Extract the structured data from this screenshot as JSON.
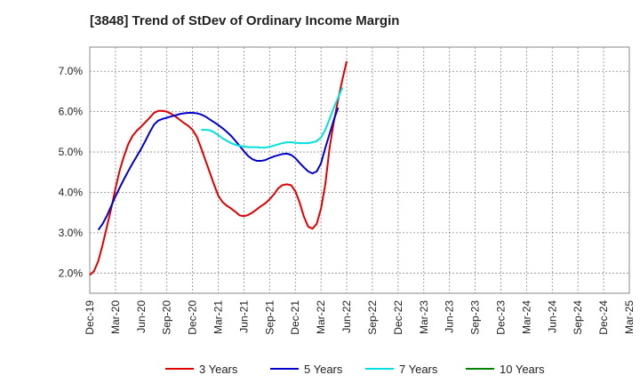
{
  "chart_data": {
    "type": "line",
    "title": "[3848]  Trend of StDev of Ordinary Income Margin",
    "xlabel": "",
    "ylabel": "",
    "x_tick_labels": [
      "Dec-19",
      "Mar-20",
      "Jun-20",
      "Sep-20",
      "Dec-20",
      "Mar-21",
      "Jun-21",
      "Sep-21",
      "Dec-21",
      "Mar-22",
      "Jun-22",
      "Sep-22",
      "Dec-22",
      "Mar-23",
      "Jun-23",
      "Sep-23",
      "Dec-23",
      "Mar-24",
      "Jun-24",
      "Sep-24",
      "Dec-24",
      "Mar-25"
    ],
    "y_tick_labels": [
      "2.0%",
      "3.0%",
      "4.0%",
      "5.0%",
      "6.0%",
      "7.0%"
    ],
    "y_ticks": [
      2.0,
      3.0,
      4.0,
      5.0,
      6.0,
      7.0
    ],
    "ylim": [
      1.5,
      7.6
    ],
    "grid": true,
    "legend_position": "bottom",
    "series": [
      {
        "name": "3 Years",
        "color": "#e00000",
        "points": [
          [
            0,
            1.95
          ],
          [
            0.5,
            2.05
          ],
          [
            1,
            2.3
          ],
          [
            1.5,
            2.7
          ],
          [
            2,
            3.15
          ],
          [
            2.5,
            3.6
          ],
          [
            3,
            4.1
          ],
          [
            3.5,
            4.55
          ],
          [
            4,
            4.9
          ],
          [
            4.5,
            5.2
          ],
          [
            5,
            5.4
          ],
          [
            5.5,
            5.53
          ],
          [
            6,
            5.63
          ],
          [
            6.5,
            5.74
          ],
          [
            7,
            5.85
          ],
          [
            7.5,
            5.97
          ],
          [
            8,
            6.02
          ],
          [
            8.5,
            6.02
          ],
          [
            9,
            6.0
          ],
          [
            9.5,
            5.95
          ],
          [
            10,
            5.88
          ],
          [
            10.5,
            5.8
          ],
          [
            11,
            5.72
          ],
          [
            11.5,
            5.65
          ],
          [
            12,
            5.55
          ],
          [
            12.5,
            5.38
          ],
          [
            13,
            5.1
          ],
          [
            13.5,
            4.8
          ],
          [
            14,
            4.5
          ],
          [
            14.5,
            4.2
          ],
          [
            15,
            3.92
          ],
          [
            15.5,
            3.76
          ],
          [
            16,
            3.67
          ],
          [
            16.5,
            3.6
          ],
          [
            17,
            3.52
          ],
          [
            17.5,
            3.43
          ],
          [
            18,
            3.41
          ],
          [
            18.5,
            3.44
          ],
          [
            19,
            3.5
          ],
          [
            19.5,
            3.58
          ],
          [
            20,
            3.66
          ],
          [
            20.5,
            3.73
          ],
          [
            21,
            3.83
          ],
          [
            21.5,
            3.95
          ],
          [
            22,
            4.1
          ],
          [
            22.5,
            4.18
          ],
          [
            23,
            4.2
          ],
          [
            23.5,
            4.18
          ],
          [
            24,
            4.03
          ],
          [
            24.5,
            3.75
          ],
          [
            25,
            3.4
          ],
          [
            25.5,
            3.15
          ],
          [
            26,
            3.1
          ],
          [
            26.5,
            3.22
          ],
          [
            27,
            3.6
          ],
          [
            27.5,
            4.2
          ],
          [
            28,
            5.1
          ],
          [
            28.5,
            5.75
          ],
          [
            29,
            6.3
          ],
          [
            29.5,
            6.8
          ],
          [
            30,
            7.25
          ]
        ]
      },
      {
        "name": "5 Years",
        "color": "#0000cc",
        "points": [
          [
            1,
            3.07
          ],
          [
            1.5,
            3.22
          ],
          [
            2,
            3.42
          ],
          [
            2.5,
            3.66
          ],
          [
            3,
            3.9
          ],
          [
            3.5,
            4.12
          ],
          [
            4,
            4.33
          ],
          [
            4.5,
            4.53
          ],
          [
            5,
            4.72
          ],
          [
            5.5,
            4.9
          ],
          [
            6,
            5.08
          ],
          [
            6.5,
            5.28
          ],
          [
            7,
            5.49
          ],
          [
            7.5,
            5.68
          ],
          [
            8,
            5.78
          ],
          [
            8.5,
            5.82
          ],
          [
            9,
            5.85
          ],
          [
            9.5,
            5.88
          ],
          [
            10,
            5.91
          ],
          [
            10.5,
            5.94
          ],
          [
            11,
            5.96
          ],
          [
            11.5,
            5.97
          ],
          [
            12,
            5.97
          ],
          [
            12.5,
            5.96
          ],
          [
            13,
            5.93
          ],
          [
            13.5,
            5.88
          ],
          [
            14,
            5.81
          ],
          [
            14.5,
            5.74
          ],
          [
            15,
            5.67
          ],
          [
            15.5,
            5.59
          ],
          [
            16,
            5.5
          ],
          [
            16.5,
            5.4
          ],
          [
            17,
            5.28
          ],
          [
            17.5,
            5.15
          ],
          [
            18,
            5.02
          ],
          [
            18.5,
            4.9
          ],
          [
            19,
            4.82
          ],
          [
            19.5,
            4.78
          ],
          [
            20,
            4.78
          ],
          [
            20.5,
            4.8
          ],
          [
            21,
            4.85
          ],
          [
            21.5,
            4.89
          ],
          [
            22,
            4.92
          ],
          [
            22.5,
            4.95
          ],
          [
            23,
            4.96
          ],
          [
            23.5,
            4.93
          ],
          [
            24,
            4.85
          ],
          [
            24.5,
            4.73
          ],
          [
            25,
            4.62
          ],
          [
            25.5,
            4.52
          ],
          [
            26,
            4.47
          ],
          [
            26.5,
            4.52
          ],
          [
            27,
            4.72
          ],
          [
            27.5,
            5.1
          ],
          [
            28,
            5.45
          ],
          [
            28.5,
            5.8
          ],
          [
            29,
            6.1
          ]
        ]
      },
      {
        "name": "7 Years",
        "color": "#00e0e0",
        "points": [
          [
            13,
            5.55
          ],
          [
            13.5,
            5.55
          ],
          [
            14,
            5.54
          ],
          [
            14.5,
            5.49
          ],
          [
            15,
            5.42
          ],
          [
            15.5,
            5.34
          ],
          [
            16,
            5.28
          ],
          [
            16.5,
            5.22
          ],
          [
            17,
            5.18
          ],
          [
            17.5,
            5.15
          ],
          [
            18,
            5.14
          ],
          [
            18.5,
            5.12
          ],
          [
            19,
            5.12
          ],
          [
            19.5,
            5.12
          ],
          [
            20,
            5.11
          ],
          [
            20.5,
            5.11
          ],
          [
            21,
            5.13
          ],
          [
            21.5,
            5.16
          ],
          [
            22,
            5.19
          ],
          [
            22.5,
            5.22
          ],
          [
            23,
            5.24
          ],
          [
            23.5,
            5.24
          ],
          [
            24,
            5.23
          ],
          [
            24.5,
            5.22
          ],
          [
            25,
            5.22
          ],
          [
            25.5,
            5.22
          ],
          [
            26,
            5.24
          ],
          [
            26.5,
            5.27
          ],
          [
            27,
            5.36
          ],
          [
            27.5,
            5.55
          ],
          [
            28,
            5.82
          ],
          [
            28.5,
            6.1
          ],
          [
            29,
            6.35
          ],
          [
            29.5,
            6.6
          ]
        ]
      },
      {
        "name": "10 Years",
        "color": "#008000",
        "points": []
      }
    ]
  }
}
